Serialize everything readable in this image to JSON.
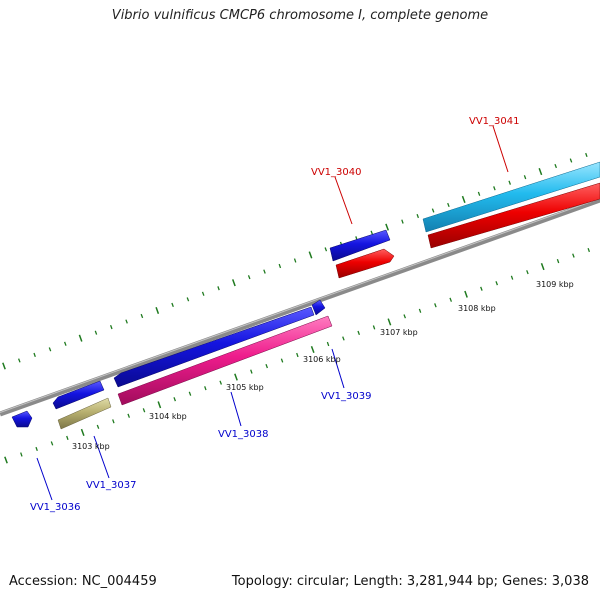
{
  "title": "Vibrio vulnificus CMCP6 chromosome I, complete genome",
  "footer": {
    "accession": "Accession: NC_004459",
    "summary": "Topology: circular; Length: 3,281,944 bp; Genes: 3,038"
  },
  "colors": {
    "backbone": "#8a8a8a",
    "tick": "#1f7a1f",
    "label_forward": "#cc0000",
    "label_reverse": "#0000cc",
    "blue_gene": "#1414e0",
    "red_gene": "#ee0000",
    "cyan_gene": "#22bbee",
    "magenta_gene": "#ee1c8c",
    "olive_gene": "#b8b070"
  },
  "ruler_labels": [
    "3103 kbp",
    "3104 kbp",
    "3105 kbp",
    "3106 kbp",
    "3107 kbp",
    "3108 kbp",
    "3109 kbp"
  ],
  "gene_labels": [
    {
      "id": "VV1_3036",
      "strand": "reverse"
    },
    {
      "id": "VV1_3037",
      "strand": "reverse"
    },
    {
      "id": "VV1_3038",
      "strand": "reverse"
    },
    {
      "id": "VV1_3039",
      "strand": "reverse"
    },
    {
      "id": "VV1_3040",
      "strand": "forward"
    },
    {
      "id": "VV1_3041",
      "strand": "forward"
    }
  ]
}
